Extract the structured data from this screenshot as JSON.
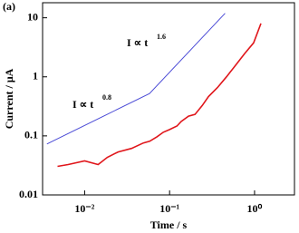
{
  "label": "(a)",
  "chart_data": {
    "type": "line",
    "x_label": "Time / s",
    "y_label": "Current / μA",
    "xlog": true,
    "ylog": true,
    "xlim": [
      0.0032,
      2.95
    ],
    "ylim": [
      0.01,
      18
    ],
    "xticks": [
      {
        "value": 0.01,
        "label": "10⁻²"
      },
      {
        "value": 0.1,
        "label": "10⁻¹"
      },
      {
        "value": 1,
        "label": "10⁰"
      }
    ],
    "yticks": [
      0.01,
      0.1,
      1,
      10
    ],
    "annotations": [
      {
        "text": "I ∝ t",
        "exponent": "1.6"
      },
      {
        "text": "I ∝ t",
        "exponent": "0.8"
      }
    ],
    "series": [
      {
        "color": "#4b4bd6",
        "x": [
          0.0036,
          0.058,
          0.45
        ],
        "values": [
          0.073,
          0.52,
          11.9
        ]
      },
      {
        "color": "#e0161b",
        "x": [
          0.0048,
          0.0064,
          0.01,
          0.0144,
          0.0185,
          0.0248,
          0.0357,
          0.0491,
          0.0583,
          0.071,
          0.0843,
          0.1,
          0.122,
          0.137,
          0.167,
          0.199,
          0.242,
          0.287,
          0.366,
          0.468,
          0.598,
          0.764,
          0.975,
          1.19
        ],
        "values": [
          0.0305,
          0.0327,
          0.0377,
          0.0327,
          0.0433,
          0.0534,
          0.0614,
          0.0757,
          0.081,
          0.0966,
          0.115,
          0.128,
          0.147,
          0.175,
          0.216,
          0.231,
          0.327,
          0.464,
          0.658,
          1.0,
          1.57,
          2.48,
          3.76,
          8.0
        ]
      }
    ]
  }
}
